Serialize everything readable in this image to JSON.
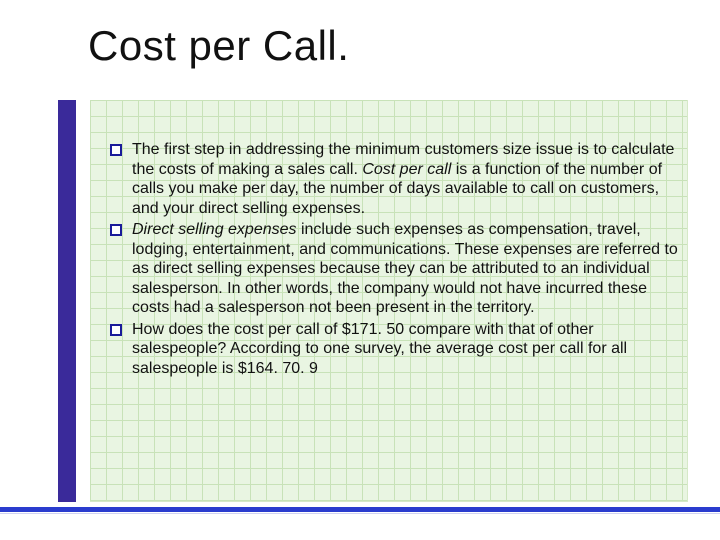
{
  "slide": {
    "title": "Cost per Call.",
    "bullets": [
      {
        "pre": "The first step in addressing the minimum customers size issue is to calculate the costs of making a sales call. ",
        "em": "Cost per call",
        "post": " is a function of the number of calls you make per day, the number of days available to call on customers, and your direct selling expenses."
      },
      {
        "pre": "",
        "em": "Direct selling expenses",
        "post": " include such expenses as compensation, travel, lodging, entertainment, and communications. These expenses are referred to as direct selling expenses because they can be attributed to an individual salesperson. In other words, the company would not have incurred these costs had a salesperson not been present in the territory."
      },
      {
        "pre": "How does the cost per call of $171. 50 compare with that of other salespeople? According to one survey, the average cost per call for all salespeople is $164. 70. 9",
        "em": "",
        "post": ""
      }
    ]
  },
  "style": {
    "accent_purple": "#3a2a9a",
    "accent_blue": "#2a3cce",
    "grid_bg": "#e9f5e2",
    "grid_line": "#c8e2b8",
    "title_fontsize": 42,
    "body_fontsize": 16,
    "bullet_border": "#1a1a9a"
  }
}
